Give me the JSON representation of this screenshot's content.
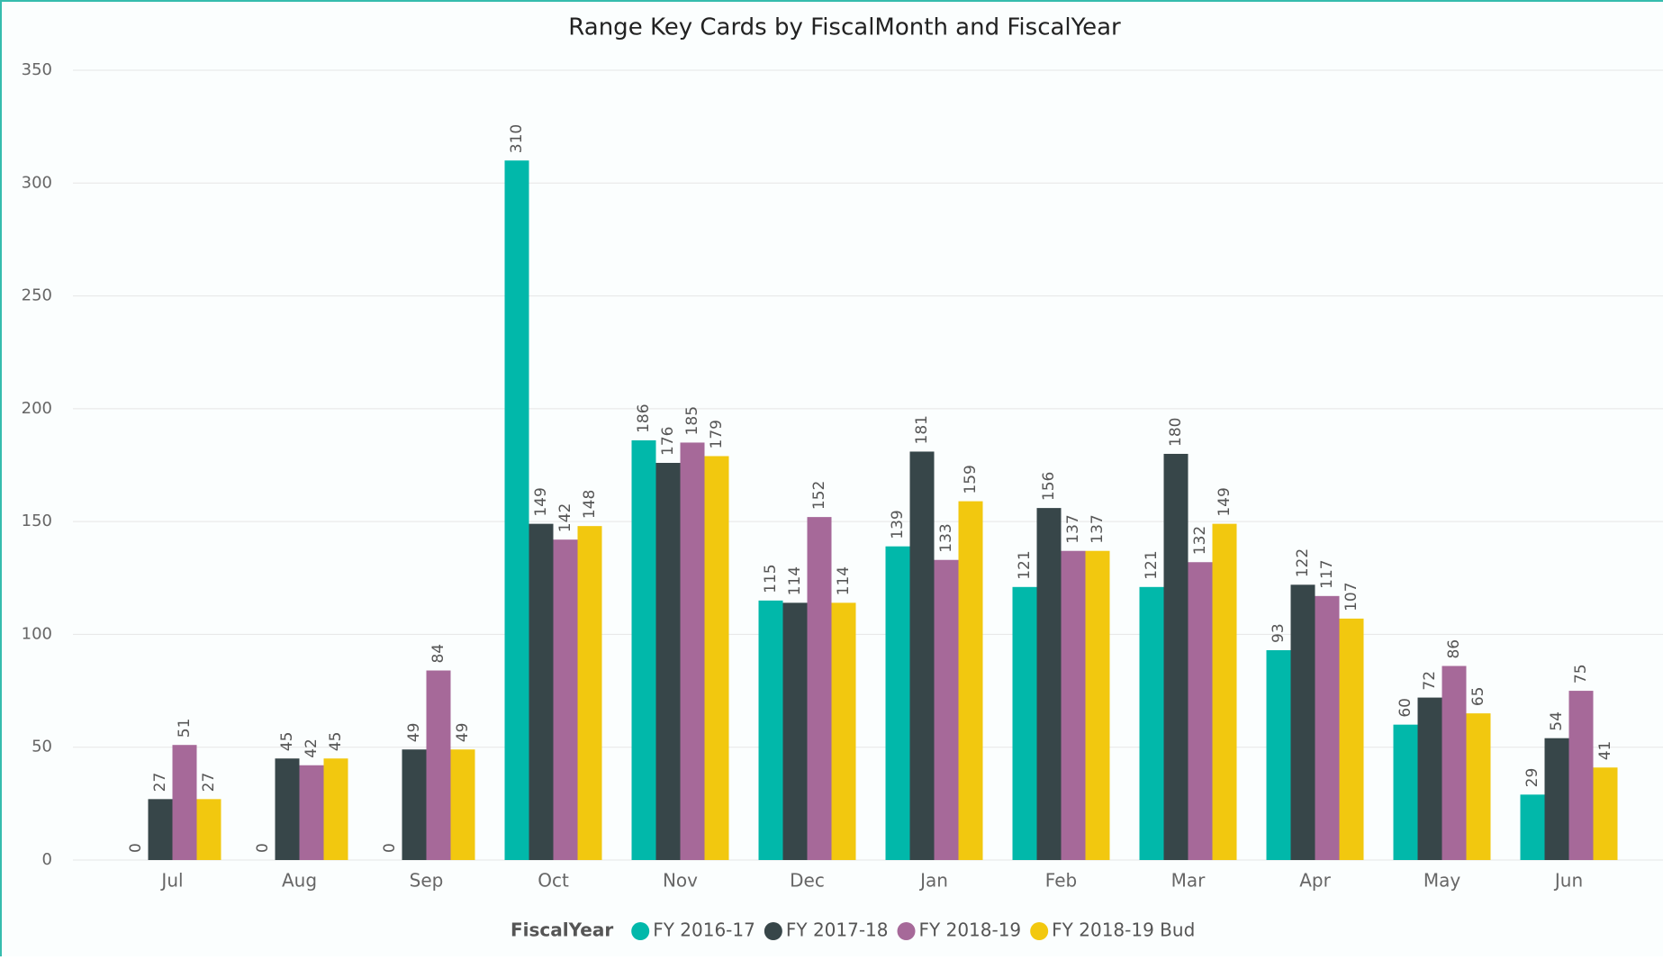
{
  "chart_data": {
    "type": "bar",
    "title": "Range Key Cards by FiscalMonth and FiscalYear",
    "legend_title": "FiscalYear",
    "categories": [
      "Jul",
      "Aug",
      "Sep",
      "Oct",
      "Nov",
      "Dec",
      "Jan",
      "Feb",
      "Mar",
      "Apr",
      "May",
      "Jun"
    ],
    "series": [
      {
        "name": "FY 2016-17",
        "color": "#01b8aa",
        "values": [
          0,
          0,
          0,
          310,
          186,
          115,
          139,
          121,
          121,
          93,
          60,
          29
        ]
      },
      {
        "name": "FY 2017-18",
        "color": "#374649",
        "values": [
          27,
          45,
          49,
          149,
          176,
          114,
          181,
          156,
          180,
          122,
          72,
          54
        ]
      },
      {
        "name": "FY 2018-19",
        "color": "#a66999",
        "values": [
          51,
          42,
          84,
          142,
          185,
          152,
          133,
          137,
          132,
          117,
          86,
          75
        ]
      },
      {
        "name": "FY 2018-19 Bud",
        "color": "#f2c80f",
        "values": [
          27,
          45,
          49,
          148,
          179,
          114,
          159,
          137,
          149,
          107,
          65,
          41
        ]
      }
    ],
    "ylim": [
      0,
      350
    ],
    "yticks": [
      0,
      50,
      100,
      150,
      200,
      250,
      300,
      350
    ],
    "grid": true,
    "legend": "bottom"
  }
}
